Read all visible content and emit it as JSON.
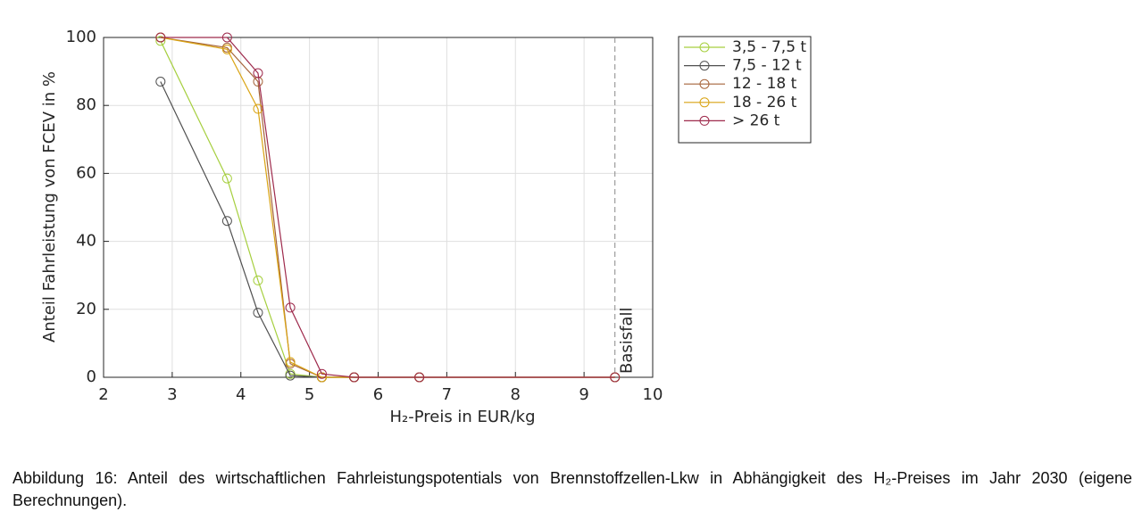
{
  "chart_data": {
    "type": "line",
    "x_label": "H₂-Preis in EUR/kg",
    "y_label": "Anteil Fahrleistung von FCEV in %",
    "x": [
      2.83,
      3.8,
      4.25,
      4.72,
      5.18,
      5.65,
      6.6,
      9.45
    ],
    "series": [
      {
        "name": "3,5 - 7,5 t",
        "color": "#a6cf3f",
        "values": [
          99,
          58.5,
          28.5,
          1,
          0,
          0,
          0,
          0
        ]
      },
      {
        "name": "7,5 - 12 t",
        "color": "#505050",
        "values": [
          87,
          46,
          19,
          0.5,
          0,
          0,
          0,
          0
        ]
      },
      {
        "name": "12 - 18 t",
        "color": "#a5633a",
        "values": [
          100,
          97,
          87,
          4,
          0,
          0,
          0,
          0
        ]
      },
      {
        "name": "18 - 26 t",
        "color": "#d9a312",
        "values": [
          100,
          96.5,
          79,
          4.5,
          0,
          0,
          0,
          0
        ]
      },
      {
        "name": "> 26 t",
        "color": "#9e2a4c",
        "values": [
          100,
          100,
          89.5,
          20.5,
          1,
          0,
          0,
          0
        ]
      }
    ],
    "xlim": [
      2,
      10
    ],
    "xticks": [
      2,
      3,
      4,
      5,
      6,
      7,
      8,
      9,
      10
    ],
    "ylim": [
      0,
      100
    ],
    "yticks": [
      0,
      20,
      40,
      60,
      80,
      100
    ],
    "grid": true,
    "legend": "outside-right",
    "vline": {
      "x": 9.45,
      "label": "Basisfall"
    }
  },
  "caption": "Abbildung 16: Anteil des wirtschaftlichen Fahrleistungspotentials von Brennstoffzellen-Lkw in Abhängigkeit des H₂-Preises im Jahr 2030 (eigene Berechnungen)."
}
